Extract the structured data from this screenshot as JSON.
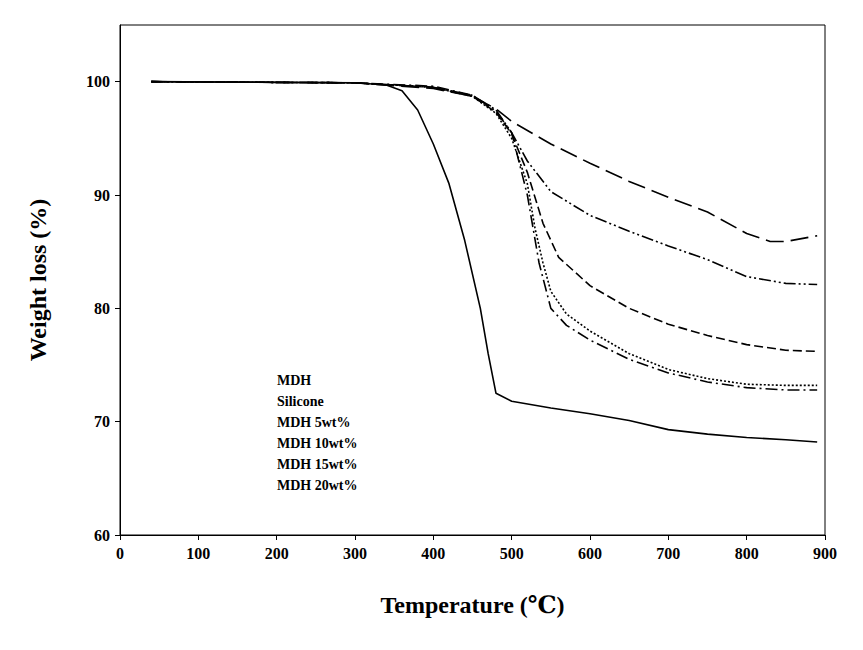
{
  "chart_data": {
    "type": "line",
    "x_label": "Temperature (℃)",
    "y_label": "Weight loss (%)",
    "xlim": [
      0,
      900
    ],
    "xticks": [
      0,
      100,
      200,
      300,
      400,
      500,
      600,
      700,
      800,
      900
    ],
    "ylim": [
      60,
      105
    ],
    "yticks": [
      60,
      70,
      80,
      90,
      100
    ],
    "grid": false,
    "legend": "lower left",
    "series": [
      {
        "name": "MDH",
        "color": "#000000",
        "line_style": "solid",
        "x": [
          40,
          300,
          340,
          360,
          380,
          400,
          420,
          440,
          460,
          470,
          480,
          500,
          550,
          600,
          650,
          700,
          750,
          800,
          850,
          890
        ],
        "values": [
          100,
          99.9,
          99.7,
          99.2,
          97.5,
          94.5,
          91,
          86,
          80,
          76,
          72.5,
          71.8,
          71.2,
          70.7,
          70.1,
          69.3,
          68.9,
          68.6,
          68.4,
          68.2
        ]
      },
      {
        "name": "Silicone",
        "color": "#000000",
        "line_style": "long-dash",
        "x": [
          40,
          300,
          400,
          450,
          480,
          500,
          550,
          600,
          650,
          700,
          750,
          800,
          830,
          850,
          890
        ],
        "values": [
          100,
          99.9,
          99.4,
          98.7,
          97.6,
          96.5,
          94.5,
          92.8,
          91.2,
          89.8,
          88.5,
          86.6,
          85.9,
          85.9,
          86.4
        ]
      },
      {
        "name": "MDH 5wt%",
        "color": "#000000",
        "line_style": "dash-dot-dot",
        "x": [
          40,
          300,
          400,
          450,
          480,
          500,
          520,
          550,
          600,
          650,
          700,
          750,
          800,
          850,
          890
        ],
        "values": [
          100,
          99.9,
          99.5,
          98.8,
          97.5,
          95.5,
          93,
          90.3,
          88.2,
          86.8,
          85.5,
          84.3,
          82.8,
          82.2,
          82.1
        ]
      },
      {
        "name": "MDH 10wt%",
        "color": "#000000",
        "line_style": "dashed",
        "x": [
          40,
          300,
          400,
          450,
          480,
          500,
          520,
          540,
          560,
          600,
          650,
          700,
          750,
          800,
          850,
          890
        ],
        "values": [
          100,
          99.9,
          99.5,
          98.7,
          97.3,
          95.4,
          92,
          87.5,
          84.5,
          82,
          80,
          78.6,
          77.6,
          76.8,
          76.3,
          76.2
        ]
      },
      {
        "name": "MDH 15wt%",
        "color": "#000000",
        "line_style": "dotted",
        "x": [
          40,
          300,
          400,
          450,
          480,
          500,
          520,
          530,
          540,
          550,
          570,
          600,
          650,
          700,
          750,
          800,
          850,
          890
        ],
        "values": [
          100,
          99.9,
          99.5,
          98.7,
          97.2,
          95,
          91,
          87,
          84,
          81.5,
          79.5,
          78,
          76,
          74.6,
          73.8,
          73.3,
          73.2,
          73.2
        ]
      },
      {
        "name": "MDH 20wt%",
        "color": "#000000",
        "line_style": "dash-dot",
        "x": [
          40,
          300,
          400,
          450,
          480,
          500,
          520,
          535,
          550,
          570,
          600,
          650,
          700,
          750,
          800,
          850,
          890
        ],
        "values": [
          100,
          99.9,
          99.6,
          98.8,
          97.4,
          95.5,
          90,
          84,
          80,
          78.5,
          77.2,
          75.5,
          74.3,
          73.5,
          73,
          72.8,
          72.8
        ]
      }
    ]
  }
}
